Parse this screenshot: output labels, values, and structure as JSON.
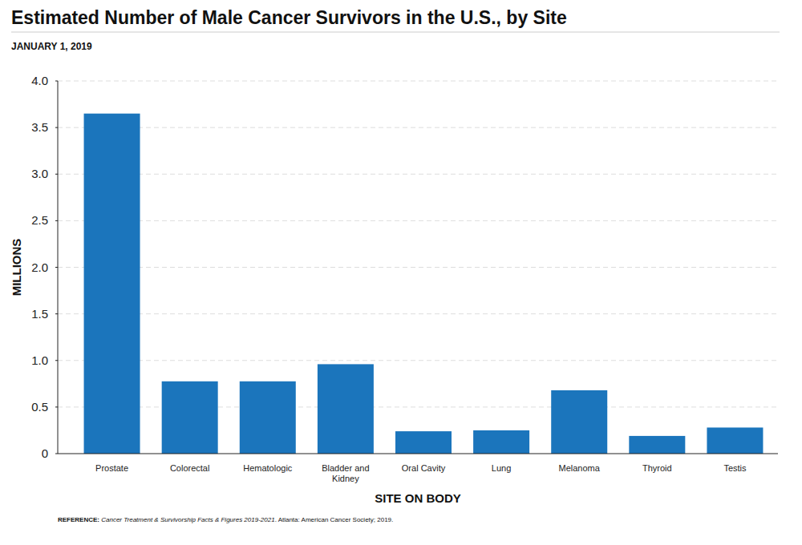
{
  "chart_data": {
    "type": "bar",
    "title": "Estimated Number of Male Cancer Survivors in the U.S., by Site",
    "subtitle": "JANUARY 1, 2019",
    "y_label": "MILLIONS",
    "x_label": "SITE ON BODY",
    "source": {
      "prefix": "REFERENCE:",
      "title": "Cancer Treatment & Survivorship Facts & Figures 2019-2021",
      "suffix": ". Atlanta: American Cancer Society; 2019."
    },
    "categories": [
      "Prostate",
      "Colorectal",
      "Hematologic",
      "Bladder and Kidney",
      "Oral Cavity",
      "Lung",
      "Melanoma",
      "Thyroid",
      "Testis"
    ],
    "values": [
      3.65,
      0.776,
      0.776,
      0.96,
      0.24,
      0.25,
      0.68,
      0.19,
      0.28
    ],
    "color": "#1b75bc",
    "ylim": [
      0,
      4
    ],
    "yticks": [
      0,
      0.5,
      {
        "value": 1,
        "label": "1.0"
      },
      1.5,
      {
        "value": 2,
        "label": "2.0"
      },
      2.5,
      {
        "value": 3,
        "label": "3.0"
      },
      3.5,
      {
        "value": 4,
        "label": "4.0"
      }
    ],
    "grid": true
  }
}
